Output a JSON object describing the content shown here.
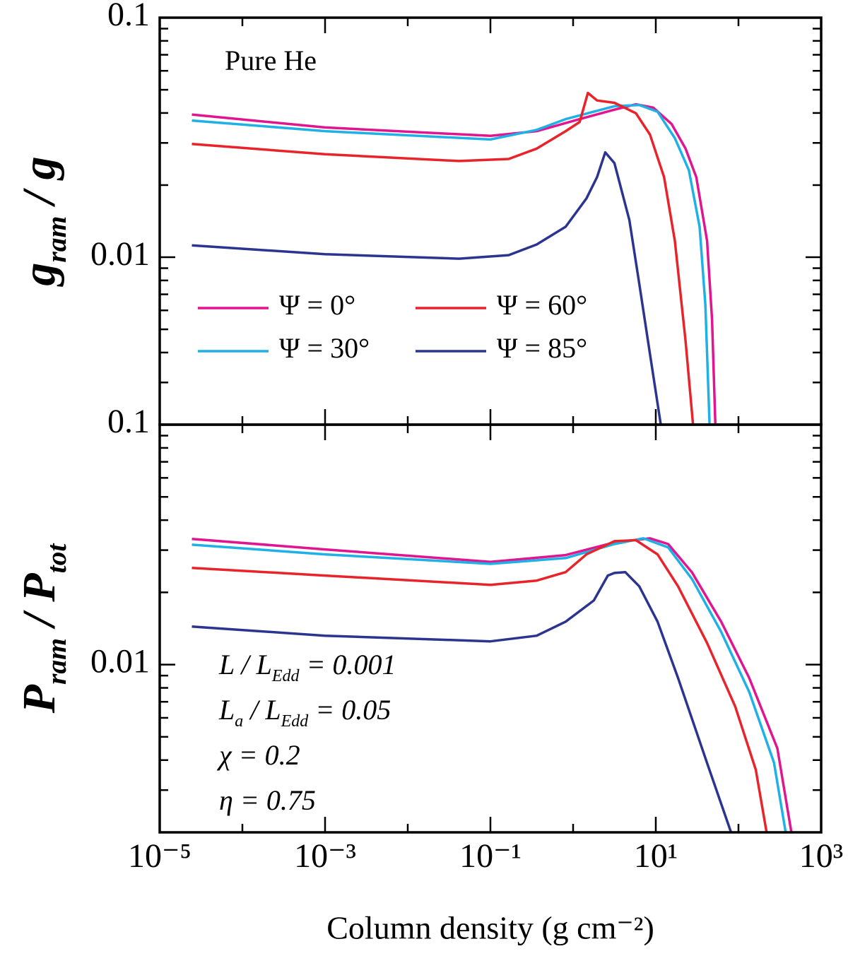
{
  "chart_data": [
    {
      "type": "line",
      "xscale": "log",
      "yscale": "log",
      "ylabel": [
        "g",
        "ram",
        " / g"
      ],
      "annotation": "Pure He",
      "legend": "top-left-two-columns",
      "xlim": [
        1e-05,
        1000
      ],
      "ylim": [
        0.002,
        0.1
      ],
      "yticks": [
        0.01,
        0.1
      ],
      "yminorticks": [
        0.002,
        0.003,
        0.004,
        0.005,
        0.006,
        0.007,
        0.008,
        0.009,
        0.02,
        0.03,
        0.04,
        0.05,
        0.06,
        0.07,
        0.08,
        0.09
      ],
      "series": [
        {
          "name": "Ψ = 0°",
          "color": "#e0158f",
          "x": [
            2.45e-05,
            0.001,
            0.1,
            0.363,
            1.2,
            3.16,
            5.75,
            9.33,
            15.5,
            22.9,
            30.9,
            41.7,
            47.9,
            52.5
          ],
          "values": [
            0.0394,
            0.0348,
            0.0321,
            0.0336,
            0.0377,
            0.0413,
            0.0435,
            0.0421,
            0.036,
            0.0284,
            0.0216,
            0.0117,
            0.0055,
            0.002
          ]
        },
        {
          "name": "Ψ = 30°",
          "color": "#1fb0e6",
          "x": [
            2.45e-05,
            0.001,
            0.1,
            0.363,
            0.813,
            3.16,
            6.31,
            10.5,
            17.0,
            25.1,
            33.9,
            39.8,
            44.7
          ],
          "values": [
            0.0372,
            0.0336,
            0.031,
            0.034,
            0.0377,
            0.0427,
            0.0432,
            0.0405,
            0.0314,
            0.0231,
            0.0134,
            0.0063,
            0.002
          ]
        },
        {
          "name": "Ψ = 60°",
          "color": "#e8232a",
          "x": [
            2.45e-05,
            0.001,
            0.0417,
            0.166,
            0.363,
            0.813,
            1.2,
            1.51,
            1.95,
            3.16,
            5.75,
            8.51,
            12.6,
            17.0,
            22.9,
            28.2
          ],
          "values": [
            0.0297,
            0.0269,
            0.0252,
            0.0257,
            0.0284,
            0.0336,
            0.0367,
            0.0485,
            0.0451,
            0.0441,
            0.0399,
            0.0325,
            0.0216,
            0.0117,
            0.00448,
            0.002
          ]
        },
        {
          "name": "Ψ = 85°",
          "color": "#2b3590",
          "x": [
            2.45e-05,
            0.001,
            0.0417,
            0.166,
            0.363,
            0.813,
            1.45,
            1.95,
            2.45,
            3.16,
            4.79,
            6.31,
            8.51,
            11.5
          ],
          "values": [
            0.0112,
            0.0103,
            0.00986,
            0.0102,
            0.0113,
            0.0134,
            0.0176,
            0.0216,
            0.0274,
            0.0247,
            0.0143,
            0.00776,
            0.00394,
            0.002
          ]
        }
      ]
    },
    {
      "type": "line",
      "xscale": "log",
      "yscale": "log",
      "ylabel": [
        "P",
        "ram",
        " / P",
        "tot"
      ],
      "xlabel": "Column density (g cm⁻²)",
      "annotations": [
        [
          "L / L",
          "Edd",
          " = 0.001"
        ],
        [
          "L",
          "a",
          " / L",
          "Edd",
          " = 0.05"
        ],
        [
          "χ = 0.2"
        ],
        [
          "η = 0.75"
        ]
      ],
      "xlim": [
        1e-05,
        1000
      ],
      "xticks": [
        {
          "value": 1e-05,
          "label": "10⁻⁵"
        },
        {
          "value": 0.001,
          "label": "10⁻³"
        },
        {
          "value": 0.1,
          "label": "10⁻¹"
        },
        {
          "value": 10,
          "label": "10¹"
        },
        {
          "value": 1000,
          "label": "10³"
        }
      ],
      "xminorticks": [
        0.0001,
        0.01,
        1,
        100
      ],
      "ylim": [
        0.002,
        0.1
      ],
      "yticks": [
        0.01,
        0.1
      ],
      "yminorticks": [
        0.002,
        0.003,
        0.004,
        0.005,
        0.006,
        0.007,
        0.008,
        0.009,
        0.02,
        0.03,
        0.04,
        0.05,
        0.06,
        0.07,
        0.08,
        0.09
      ],
      "series": [
        {
          "name": "Ψ = 0°",
          "color": "#e0158f",
          "x": [
            2.45e-05,
            0.001,
            0.1,
            0.813,
            3.16,
            8.51,
            14.1,
            27.5,
            61.7,
            135,
            295,
            437
          ],
          "values": [
            0.0334,
            0.0302,
            0.0268,
            0.0286,
            0.0323,
            0.0336,
            0.0318,
            0.0242,
            0.0151,
            0.0088,
            0.00448,
            0.002
          ]
        },
        {
          "name": "Ψ = 30°",
          "color": "#1fb0e6",
          "x": [
            2.45e-05,
            0.001,
            0.1,
            0.813,
            3.16,
            7.08,
            14.1,
            27.5,
            61.7,
            135,
            269,
            372
          ],
          "values": [
            0.0316,
            0.0288,
            0.0263,
            0.0278,
            0.0318,
            0.0336,
            0.0308,
            0.0227,
            0.0137,
            0.0077,
            0.0039,
            0.002
          ]
        },
        {
          "name": "Ψ = 60°",
          "color": "#e8232a",
          "x": [
            2.45e-05,
            0.001,
            0.1,
            0.363,
            0.813,
            1.45,
            3.16,
            5.75,
            10.5,
            18.6,
            41.7,
            91.2,
            162,
            219
          ],
          "values": [
            0.0253,
            0.0235,
            0.0215,
            0.0224,
            0.0243,
            0.0288,
            0.0327,
            0.033,
            0.0288,
            0.0212,
            0.0123,
            0.0067,
            0.00365,
            0.002
          ]
        },
        {
          "name": "Ψ = 85°",
          "color": "#2b3590",
          "x": [
            2.45e-05,
            0.001,
            0.1,
            0.363,
            0.813,
            1.78,
            2.63,
            3.16,
            4.27,
            6.31,
            10.5,
            18.6,
            41.7,
            81.3
          ],
          "values": [
            0.0144,
            0.0132,
            0.0125,
            0.0132,
            0.0151,
            0.0185,
            0.0235,
            0.0241,
            0.0243,
            0.0212,
            0.0151,
            0.0088,
            0.00389,
            0.002
          ]
        }
      ]
    }
  ]
}
